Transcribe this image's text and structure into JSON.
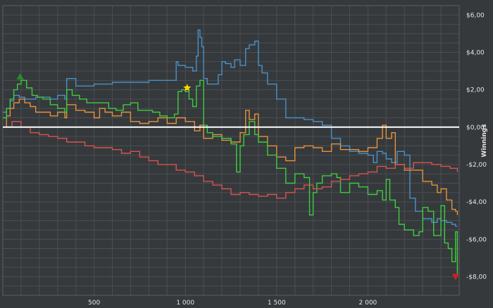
{
  "chart_data": {
    "type": "line",
    "title": "",
    "xlabel": "",
    "ylabel": "Winnings",
    "xlim": [
      0,
      2500
    ],
    "ylim": [
      -9,
      6.5
    ],
    "x_ticks": [
      500,
      1000,
      1500,
      2000
    ],
    "x_tick_labels": [
      "500",
      "1 000",
      "1 500",
      "2 000"
    ],
    "y_ticks": [
      6,
      4,
      2,
      0,
      -2,
      -4,
      -6,
      -8
    ],
    "y_tick_labels": [
      "$6,00",
      "$4,00",
      "$2,00",
      "$0,00",
      "-$2,00",
      "-$4,00",
      "-$6,00",
      "-$8,00"
    ],
    "grid": true,
    "legend": "none",
    "zero_line": 0,
    "colors": {
      "background": "#35393c",
      "grid": "#4a4f53",
      "zero_line": "#ffffff",
      "blue": "#4a90c8",
      "orange": "#e8913a",
      "green": "#3fcc3f",
      "red": "#d9534f",
      "peak_marker": "#2a8a2a",
      "star_marker": "#ffd700",
      "low_marker": "#cc2222"
    },
    "series": [
      {
        "color_key": "blue",
        "x": [
          0,
          20,
          40,
          60,
          90,
          120,
          150,
          180,
          220,
          260,
          300,
          340,
          350,
          400,
          450,
          500,
          600,
          700,
          800,
          900,
          950,
          960,
          1000,
          1040,
          1060,
          1070,
          1080,
          1090,
          1100,
          1120,
          1150,
          1180,
          1200,
          1220,
          1250,
          1270,
          1300,
          1330,
          1350,
          1380,
          1400,
          1420,
          1450,
          1500,
          1550,
          1600,
          1650,
          1700,
          1750,
          1800,
          1850,
          1900,
          1950,
          2000,
          2030,
          2050,
          2080,
          2100,
          2130,
          2160,
          2200,
          2230,
          2260,
          2300,
          2350,
          2380,
          2400,
          2430,
          2460,
          2480,
          2490
        ],
        "y": [
          0.8,
          1.0,
          1.4,
          1.7,
          1.6,
          1.5,
          1.5,
          1.6,
          1.6,
          1.5,
          1.7,
          1.5,
          2.6,
          2.2,
          2.2,
          2.3,
          2.4,
          2.4,
          2.5,
          2.5,
          3.5,
          3.3,
          3.2,
          3.0,
          3.8,
          5.2,
          4.8,
          4.3,
          2.6,
          2.3,
          2.3,
          2.8,
          3.5,
          3.4,
          3.2,
          3.6,
          3.3,
          4.2,
          4.4,
          4.6,
          3.3,
          2.9,
          2.3,
          1.5,
          0.5,
          0.5,
          0.4,
          0.3,
          0.1,
          -0.6,
          -1.0,
          -1.3,
          -1.4,
          -1.5,
          -1.9,
          -1.3,
          -1.4,
          -1.7,
          -1.9,
          -1.3,
          -1.5,
          -3.8,
          -4.5,
          -4.9,
          -5.1,
          -4.9,
          -5.0,
          -5.1,
          -5.2,
          -5.3,
          -5.3
        ]
      },
      {
        "color_key": "orange",
        "x": [
          0,
          20,
          40,
          60,
          90,
          120,
          150,
          180,
          220,
          260,
          300,
          340,
          350,
          400,
          450,
          500,
          530,
          560,
          600,
          650,
          700,
          750,
          800,
          850,
          900,
          950,
          1000,
          1050,
          1080,
          1100,
          1150,
          1200,
          1250,
          1300,
          1330,
          1350,
          1380,
          1400,
          1450,
          1500,
          1550,
          1600,
          1650,
          1700,
          1750,
          1800,
          1850,
          1900,
          1950,
          2000,
          2050,
          2080,
          2100,
          2130,
          2150,
          2200,
          2250,
          2300,
          2350,
          2380,
          2400,
          2430,
          2460,
          2480,
          2490
        ],
        "y": [
          0.0,
          0.6,
          1.0,
          1.3,
          1.5,
          1.3,
          1.1,
          0.8,
          0.8,
          0.6,
          0.8,
          0.5,
          1.2,
          0.9,
          0.8,
          0.5,
          1.0,
          0.8,
          0.6,
          0.8,
          0.3,
          0.2,
          0.3,
          0.5,
          0.2,
          0.5,
          0.3,
          -0.2,
          0.1,
          -0.6,
          -0.4,
          -0.7,
          -0.8,
          -0.3,
          0.9,
          0.4,
          0.7,
          -0.5,
          -1.0,
          -1.6,
          -1.8,
          -1.1,
          -1.0,
          -1.1,
          -1.3,
          -0.9,
          -1.2,
          -1.2,
          -1.3,
          -1.1,
          -0.6,
          0.1,
          -0.6,
          -0.3,
          -2.0,
          -2.3,
          -2.3,
          -2.9,
          -3.1,
          -3.5,
          -3.3,
          -3.9,
          -4.4,
          -4.5,
          -4.7
        ]
      },
      {
        "color_key": "green",
        "x": [
          0,
          20,
          40,
          60,
          80,
          100,
          130,
          160,
          190,
          220,
          260,
          300,
          340,
          350,
          380,
          420,
          460,
          500,
          540,
          580,
          620,
          660,
          700,
          740,
          780,
          820,
          860,
          900,
          940,
          960,
          980,
          1000,
          1020,
          1040,
          1060,
          1080,
          1100,
          1120,
          1150,
          1200,
          1250,
          1280,
          1300,
          1320,
          1350,
          1380,
          1400,
          1450,
          1500,
          1550,
          1600,
          1650,
          1680,
          1700,
          1720,
          1750,
          1800,
          1830,
          1850,
          1900,
          1950,
          2000,
          2050,
          2080,
          2100,
          2120,
          2150,
          2170,
          2200,
          2250,
          2280,
          2300,
          2330,
          2360,
          2400,
          2420,
          2440,
          2460,
          2480,
          2490
        ],
        "y": [
          0.5,
          1.0,
          1.5,
          2.0,
          2.3,
          2.5,
          2.1,
          1.7,
          1.6,
          1.5,
          1.2,
          1.0,
          0.8,
          2.0,
          1.7,
          1.5,
          1.3,
          1.3,
          1.3,
          1.0,
          0.9,
          1.2,
          1.3,
          0.9,
          0.9,
          0.8,
          0.6,
          0.5,
          0.7,
          1.9,
          2.0,
          1.9,
          1.5,
          1.1,
          2.2,
          2.5,
          0.1,
          -0.3,
          -0.5,
          -0.6,
          -0.9,
          -2.4,
          -1.0,
          -0.4,
          0.3,
          -0.4,
          -0.8,
          -1.5,
          -2.2,
          -3.0,
          -2.5,
          -2.7,
          -4.7,
          -3.5,
          -3.0,
          -2.6,
          -2.5,
          -2.7,
          -3.5,
          -3.0,
          -3.2,
          -3.6,
          -3.4,
          -3.9,
          -2.8,
          -3.9,
          -4.3,
          -5.2,
          -5.5,
          -5.8,
          -5.6,
          -4.3,
          -4.5,
          -5.8,
          -4.2,
          -6.2,
          -6.5,
          -7.2,
          -5.6,
          -7.9
        ]
      },
      {
        "color_key": "red",
        "x": [
          0,
          50,
          100,
          150,
          200,
          250,
          300,
          350,
          400,
          450,
          500,
          550,
          600,
          650,
          700,
          750,
          800,
          850,
          900,
          950,
          1000,
          1050,
          1100,
          1150,
          1200,
          1250,
          1300,
          1350,
          1400,
          1450,
          1500,
          1550,
          1600,
          1650,
          1700,
          1750,
          1800,
          1850,
          1900,
          1950,
          2000,
          2050,
          2100,
          2150,
          2200,
          2250,
          2300,
          2350,
          2400,
          2450,
          2490
        ],
        "y": [
          0.0,
          0.3,
          0.0,
          -0.3,
          -0.4,
          -0.5,
          -0.6,
          -0.8,
          -0.8,
          -1.0,
          -1.1,
          -1.1,
          -1.2,
          -1.4,
          -1.3,
          -1.6,
          -1.8,
          -2.0,
          -2.0,
          -2.3,
          -2.4,
          -2.6,
          -2.9,
          -3.1,
          -3.3,
          -3.6,
          -3.5,
          -3.6,
          -3.7,
          -3.6,
          -3.8,
          -3.5,
          -3.3,
          -3.1,
          -3.3,
          -3.2,
          -2.9,
          -2.8,
          -2.6,
          -2.5,
          -2.4,
          -2.1,
          -2.2,
          -2.0,
          -2.2,
          -1.9,
          -1.9,
          -2.0,
          -2.1,
          -2.2,
          -2.4
        ]
      }
    ],
    "markers": [
      {
        "shape": "triangle-up",
        "color_key": "peak_marker",
        "x": 95,
        "y": 2.7
      },
      {
        "shape": "star",
        "color_key": "star_marker",
        "x": 1010,
        "y": 2.1
      },
      {
        "shape": "triangle-down",
        "color_key": "low_marker",
        "x": 2480,
        "y": -8.0
      }
    ]
  }
}
